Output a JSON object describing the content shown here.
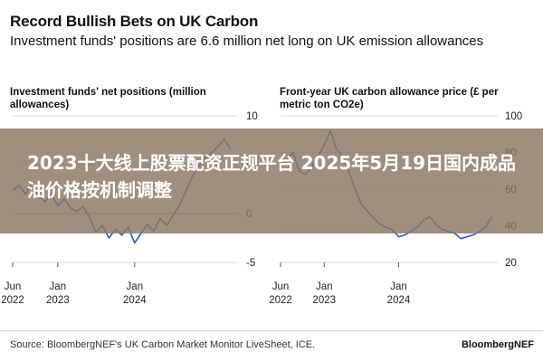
{
  "header": {
    "title": "Record Bullish Bets on UK Carbon",
    "subtitle": "Investment funds' positions are 6.6 million net long on UK emission allowances"
  },
  "colors": {
    "series": "#1f5fd6",
    "grid": "#d9d9d9",
    "zero": "#999999"
  },
  "overlay": {
    "text": "2023十大线上股票配资正规平台 2025年5月19日国内成品油价格按机制调整"
  },
  "footer": {
    "source": "Source: BloombergNEF's UK Carbon Market Monitor LiveSheet, ICE.",
    "brand": "BloombergNEF"
  },
  "chart_data": [
    {
      "type": "line",
      "title": "Investment funds' net positions (million allowances)",
      "y_axis_side": "right",
      "ylim": [
        -5,
        10
      ],
      "yticks": [
        10,
        5,
        0,
        -5
      ],
      "xlim": [
        "2022-06-01",
        "2025-05-01"
      ],
      "xticks": [
        {
          "value": "2022-06-01",
          "label": [
            "Jun",
            "2022"
          ]
        },
        {
          "value": "2023-01-01",
          "label": [
            "Jan",
            "2023"
          ]
        },
        {
          "value": "2024-01-01",
          "label": [
            "Jan",
            "2024"
          ]
        }
      ],
      "grid": true,
      "series": [
        {
          "x": [
            "2022-06-01",
            "2022-07-01",
            "2022-08-01",
            "2022-09-01",
            "2022-10-01",
            "2022-11-01",
            "2022-12-01",
            "2023-01-01",
            "2023-02-01",
            "2023-03-01",
            "2023-04-01",
            "2023-05-01",
            "2023-06-01",
            "2023-07-01",
            "2023-08-01",
            "2023-09-01",
            "2023-10-01",
            "2023-11-01",
            "2023-12-01",
            "2024-01-01",
            "2024-02-01",
            "2024-03-01",
            "2024-04-01",
            "2024-05-01",
            "2024-06-01",
            "2024-07-01",
            "2024-08-01",
            "2024-09-01",
            "2024-10-01",
            "2024-11-01",
            "2024-12-01",
            "2025-01-01",
            "2025-02-01",
            "2025-03-01",
            "2025-04-01"
          ],
          "values": [
            2.4,
            2.9,
            2.0,
            3.1,
            1.9,
            1.2,
            2.0,
            0.8,
            1.5,
            0.6,
            0.2,
            0.7,
            -0.4,
            -1.9,
            -1.2,
            -2.5,
            -1.6,
            -2.2,
            -1.4,
            -3.0,
            -2.0,
            -1.1,
            -1.8,
            -0.5,
            -1.2,
            -0.2,
            0.9,
            2.3,
            3.8,
            4.9,
            5.7,
            6.2,
            6.9,
            7.6,
            6.6
          ]
        }
      ]
    },
    {
      "type": "line",
      "title": "Front-year UK carbon allowance price (£ per metric ton CO2e)",
      "y_axis_side": "right",
      "ylim": [
        20,
        100
      ],
      "yticks": [
        100,
        80,
        60,
        40,
        20
      ],
      "xlim": [
        "2022-06-01",
        "2025-05-01"
      ],
      "xticks": [
        {
          "value": "2022-06-01",
          "label": [
            "Jun",
            "2022"
          ]
        },
        {
          "value": "2023-01-01",
          "label": [
            "Jan",
            "2023"
          ]
        },
        {
          "value": "2024-01-01",
          "label": [
            "Jan",
            "2024"
          ]
        }
      ],
      "grid": true,
      "series": [
        {
          "x": [
            "2022-06-01",
            "2022-07-01",
            "2022-08-01",
            "2022-09-01",
            "2022-10-01",
            "2022-11-01",
            "2022-12-01",
            "2023-01-01",
            "2023-02-01",
            "2023-03-01",
            "2023-04-01",
            "2023-05-01",
            "2023-06-01",
            "2023-07-01",
            "2023-08-01",
            "2023-09-01",
            "2023-10-01",
            "2023-11-01",
            "2023-12-01",
            "2024-01-01",
            "2024-02-01",
            "2024-03-01",
            "2024-04-01",
            "2024-05-01",
            "2024-06-01",
            "2024-07-01",
            "2024-08-01",
            "2024-09-01",
            "2024-10-01",
            "2024-11-01",
            "2024-12-01",
            "2025-01-01",
            "2025-02-01",
            "2025-03-01",
            "2025-04-01"
          ],
          "values": [
            72,
            76,
            80,
            70,
            68,
            72,
            78,
            84,
            92,
            82,
            78,
            70,
            60,
            52,
            48,
            44,
            41,
            39,
            38,
            34,
            35,
            37,
            39,
            43,
            45,
            41,
            38,
            37,
            36,
            33,
            34,
            35,
            37,
            39,
            45
          ]
        }
      ]
    }
  ]
}
